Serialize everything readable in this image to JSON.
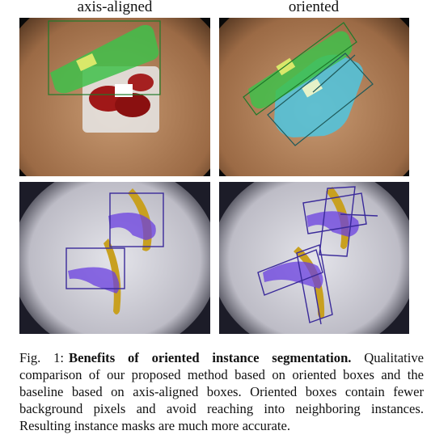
{
  "columns": {
    "left": "axis-aligned",
    "right": "oriented"
  },
  "panels": [
    {
      "name": "strawberries-axis-aligned",
      "column": "axis-aligned",
      "row": 1
    },
    {
      "name": "strawberries-oriented",
      "column": "oriented",
      "row": 1
    },
    {
      "name": "bananas-axis-aligned",
      "column": "axis-aligned",
      "row": 2
    },
    {
      "name": "bananas-oriented",
      "column": "oriented",
      "row": 2
    }
  ],
  "caption": {
    "label": "Fig. 1:",
    "title": "Benefits of oriented instance segmentation.",
    "body": "Qualitative comparison of our proposed method based on oriented boxes and the baseline based on axis-aligned boxes. Oriented boxes contain fewer background pixels and avoid reaching into neighboring instances. Resulting instance masks are much more accurate."
  },
  "colors": {
    "green_mask": "#3fbf4a",
    "cyan_mask": "#4ec6e0",
    "purple_mask": "#6a3fe0",
    "box_green": "#1f7a2a",
    "box_teal": "#1f5a5a",
    "box_purple": "#3a2a9a",
    "bin_brown": "#8a5a35",
    "tray_gray": "#cfcfd6"
  }
}
